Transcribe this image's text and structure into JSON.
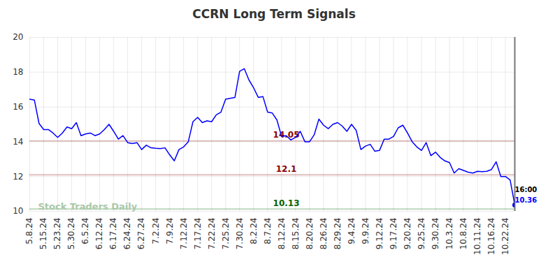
{
  "chart_data": {
    "type": "line",
    "title": "CCRN Long Term Signals",
    "categories": [
      "5.8.24",
      null,
      null,
      "5.15.24",
      null,
      null,
      "5.23.24",
      null,
      null,
      "5.30.24",
      null,
      null,
      "6.5.24",
      null,
      null,
      "6.12.24",
      null,
      null,
      "6.17.24",
      null,
      null,
      "6.24.24",
      null,
      null,
      "6.27.24",
      null,
      null,
      "7.2.24",
      null,
      null,
      "7.9.24",
      null,
      null,
      "7.12.24",
      null,
      null,
      "7.17.24",
      null,
      null,
      "7.22.24",
      null,
      null,
      "7.25.24",
      null,
      null,
      "7.30.24",
      null,
      null,
      "8.2.24",
      null,
      null,
      "8.7.24",
      null,
      null,
      "8.12.24",
      null,
      null,
      "8.15.24",
      null,
      null,
      "8.20.24",
      null,
      null,
      "8.26.24",
      null,
      null,
      "8.29.24",
      null,
      null,
      "9.4.24",
      null,
      null,
      "9.9.24",
      null,
      null,
      "9.12.24",
      null,
      null,
      "9.17.24",
      null,
      null,
      "9.20.24",
      null,
      null,
      "9.25.24",
      null,
      null,
      "9.30.24",
      null,
      null,
      "10.3.24",
      null,
      null,
      "10.8.24",
      null,
      null,
      "10.11.24",
      null,
      null,
      "10.16.24",
      null,
      null,
      "10.22.24",
      null,
      null
    ],
    "values": [
      16.45,
      16.4,
      15.05,
      14.7,
      14.7,
      14.5,
      14.25,
      14.5,
      14.85,
      14.75,
      15.1,
      14.35,
      14.45,
      14.5,
      14.35,
      14.45,
      14.7,
      15.0,
      14.6,
      14.15,
      14.35,
      13.95,
      13.9,
      13.95,
      13.55,
      13.8,
      13.65,
      13.62,
      13.6,
      13.65,
      13.25,
      12.9,
      13.55,
      13.7,
      14.0,
      15.15,
      15.4,
      15.1,
      15.2,
      15.15,
      15.55,
      15.7,
      16.45,
      16.5,
      16.55,
      18.05,
      18.2,
      17.55,
      17.1,
      16.55,
      16.6,
      15.7,
      15.65,
      15.25,
      14.3,
      14.35,
      14.1,
      14.25,
      14.6,
      14.0,
      14.0,
      14.4,
      15.3,
      14.95,
      14.75,
      15.0,
      15.1,
      14.9,
      14.6,
      15.0,
      14.65,
      13.55,
      13.75,
      13.85,
      13.45,
      13.5,
      14.15,
      14.15,
      14.3,
      14.8,
      14.95,
      14.5,
      14.0,
      13.7,
      13.5,
      13.95,
      13.2,
      13.4,
      13.1,
      12.9,
      12.8,
      12.2,
      12.45,
      12.35,
      12.25,
      12.2,
      12.3,
      12.28,
      12.3,
      12.4,
      12.85,
      12.0,
      12.0,
      11.8,
      10.36
    ],
    "color": "#0000ff",
    "ylim": [
      10,
      20
    ],
    "yticks": [
      10,
      12,
      14,
      16,
      18,
      20
    ],
    "grid": true,
    "reference_lines": [
      {
        "value": 14.05,
        "color": "#8b0000"
      },
      {
        "value": 12.1,
        "color": "#8b0000"
      },
      {
        "value": 10.13,
        "color": "#006400"
      }
    ],
    "last_label": "16:00",
    "watermark": "Stock Traders Daily"
  }
}
